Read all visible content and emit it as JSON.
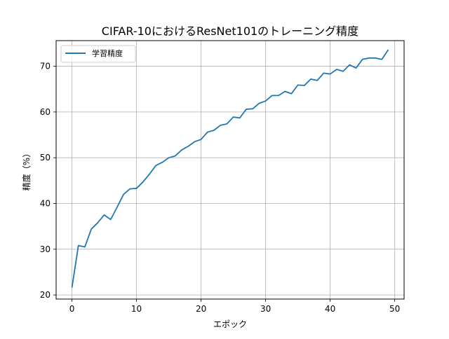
{
  "chart_data": {
    "type": "line",
    "title": "CIFAR-10におけるResNet101のトレーニング精度",
    "xlabel": "エポック",
    "ylabel": "精度（%）",
    "xlim": [
      -2.45,
      51.45
    ],
    "ylim": [
      19.1,
      75.6
    ],
    "xticks": [
      0,
      10,
      20,
      30,
      40,
      50
    ],
    "yticks": [
      20,
      30,
      40,
      50,
      60,
      70
    ],
    "grid": true,
    "legend_position": "top-left",
    "colors": {
      "series": "#1f77b4",
      "grid": "#b0b0b0",
      "axes": "#000000"
    },
    "series": [
      {
        "name": "学習精度",
        "x": [
          0,
          1,
          2,
          3,
          4,
          5,
          6,
          7,
          8,
          9,
          10,
          11,
          12,
          13,
          14,
          15,
          16,
          17,
          18,
          19,
          20,
          21,
          22,
          23,
          24,
          25,
          26,
          27,
          28,
          29,
          30,
          31,
          32,
          33,
          34,
          35,
          36,
          37,
          38,
          39,
          40,
          41,
          42,
          43,
          44,
          45,
          46,
          47,
          48,
          49
        ],
        "values": [
          21.6,
          30.8,
          30.5,
          34.4,
          35.8,
          37.5,
          36.5,
          39.2,
          42.0,
          43.2,
          43.3,
          44.7,
          46.4,
          48.3,
          49.0,
          50.0,
          50.4,
          51.7,
          52.5,
          53.5,
          54.0,
          55.6,
          56.0,
          57.1,
          57.4,
          58.9,
          58.7,
          60.6,
          60.7,
          61.9,
          62.4,
          63.6,
          63.6,
          64.5,
          64.0,
          65.9,
          65.8,
          67.2,
          66.9,
          68.5,
          68.3,
          69.3,
          68.9,
          70.3,
          69.6,
          71.5,
          71.8,
          71.8,
          71.5,
          73.6
        ]
      }
    ]
  }
}
